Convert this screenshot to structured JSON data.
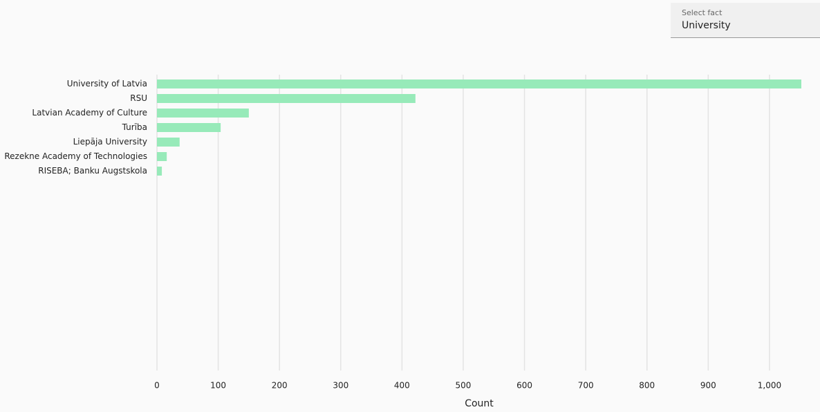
{
  "select": {
    "label": "Select fact",
    "value": "University"
  },
  "chart_data": {
    "type": "bar",
    "orientation": "horizontal",
    "categories": [
      "University of Latvia",
      "RSU",
      "Latvian Academy of Culture",
      "Turība",
      "Liepāja University",
      "Rezekne Academy of Technologies",
      "RISEBA; Banku Augstskola"
    ],
    "values": [
      1052,
      422,
      150,
      104,
      37,
      16,
      8
    ],
    "color": "#97eab9",
    "xlim": [
      0,
      1052
    ],
    "xticks": [
      0,
      100,
      200,
      300,
      400,
      500,
      600,
      700,
      800,
      900,
      {
        "value": 1000,
        "label": "1,000"
      }
    ],
    "xlabel": "Count",
    "grid": true
  }
}
